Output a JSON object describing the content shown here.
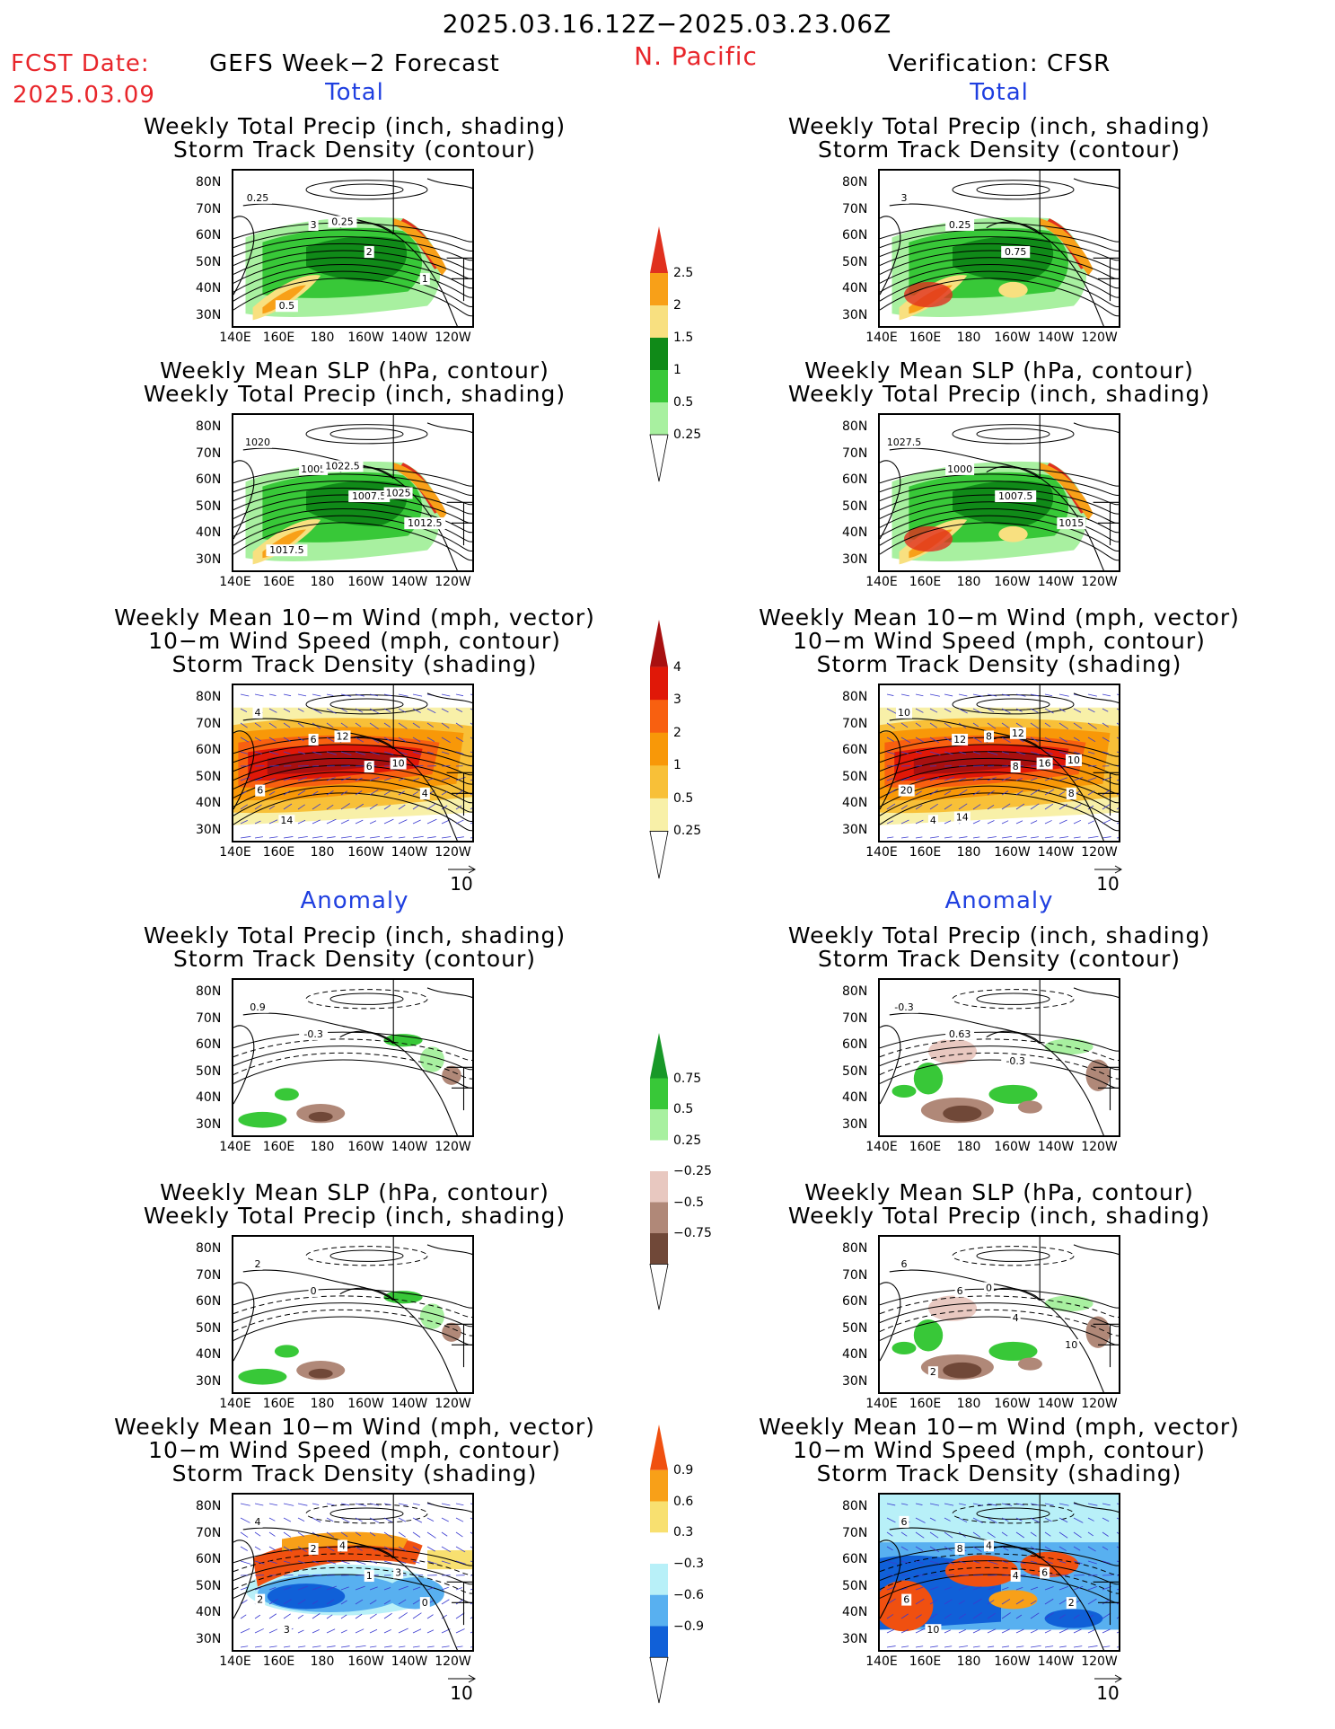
{
  "header": {
    "date_range": "2025.03.16.12Z−2025.03.23.06Z",
    "region": "N. Pacific",
    "fcst_label": "FCST Date:",
    "fcst_date": "2025.03.09",
    "left_title": "GEFS Week−2 Forecast",
    "right_title": "Verification: CFSR"
  },
  "sections": {
    "total": "Total",
    "anomaly": "Anomaly"
  },
  "panel_titles": {
    "precip_storm": [
      "Weekly Total Precip (inch, shading)",
      "Storm Track Density (contour)"
    ],
    "slp_precip": [
      "Weekly Mean SLP (hPa, contour)",
      "Weekly Total Precip (inch, shading)"
    ],
    "wind": [
      "Weekly Mean 10−m Wind (mph, vector)",
      "10−m Wind Speed (mph, contour)",
      "Storm Track Density (shading)"
    ]
  },
  "axes": {
    "lon_ticks": [
      "140E",
      "160E",
      "180",
      "160W",
      "140W",
      "120W"
    ],
    "lat_ticks": [
      "80N",
      "70N",
      "60N",
      "50N",
      "40N",
      "30N"
    ]
  },
  "vector_ref": "10",
  "colorbars": {
    "precip_total": {
      "labels": [
        "2.5",
        "2",
        "1.5",
        "1",
        "0.5",
        "0.25"
      ],
      "colors": [
        "#e0301e",
        "#f8a018",
        "#f8e080",
        "#108a18",
        "#38c838",
        "#a8f0a0"
      ]
    },
    "storm_total": {
      "labels": [
        "4",
        "3",
        "2",
        "1",
        "0.5",
        "0.25"
      ],
      "colors": [
        "#a81010",
        "#e01808",
        "#f86010",
        "#f89808",
        "#f8c038",
        "#f8f0a8"
      ]
    },
    "precip_anom": {
      "labels": [
        "0.75",
        "0.5",
        "0.25",
        "−0.25",
        "−0.5",
        "−0.75"
      ],
      "colors": [
        "#189828",
        "#38c838",
        "#a8f0a0",
        "#ffffff",
        "#e8c8c0",
        "#b08878",
        "#704838"
      ]
    },
    "storm_anom": {
      "labels": [
        "0.9",
        "0.6",
        "0.3",
        "−0.3",
        "−0.6",
        "−0.9"
      ],
      "colors": [
        "#f05010",
        "#f8a018",
        "#f8e070",
        "#ffffff",
        "#b8f0f8",
        "#58b0f0",
        "#1060d8"
      ]
    }
  },
  "panels": [
    {
      "id": "fc-total-precip",
      "col": "left",
      "row": 0,
      "kind": "precip",
      "labels": [
        "0.25",
        "3",
        "2",
        "1",
        "0.5",
        "0.25"
      ]
    },
    {
      "id": "fc-total-slp",
      "col": "left",
      "row": 1,
      "kind": "precip",
      "labels": [
        "1020",
        "1005",
        "1007.5",
        "1012.5",
        "1017.5",
        "1022.5",
        "1025"
      ]
    },
    {
      "id": "fc-total-wind",
      "col": "left",
      "row": 2,
      "kind": "storm",
      "labels": [
        "4",
        "6",
        "6",
        "4",
        "14",
        "12",
        "10",
        "6"
      ]
    },
    {
      "id": "fc-anom-precip",
      "col": "left",
      "row": 3,
      "kind": "anomprecip",
      "labels": [
        "0.9",
        "-0.3"
      ]
    },
    {
      "id": "fc-anom-slp",
      "col": "left",
      "row": 4,
      "kind": "anomprecip",
      "labels": [
        "2",
        "0"
      ]
    },
    {
      "id": "fc-anom-wind",
      "col": "left",
      "row": 5,
      "kind": "anomstorm",
      "labels": [
        "4",
        "2",
        "1",
        "0",
        "3",
        "4",
        "3",
        "2"
      ]
    },
    {
      "id": "vf-total-precip",
      "col": "right",
      "row": 0,
      "kind": "precip",
      "labels": [
        "3",
        "0.25",
        "0.75"
      ]
    },
    {
      "id": "vf-total-slp",
      "col": "right",
      "row": 1,
      "kind": "precip",
      "labels": [
        "1027.5",
        "1000",
        "1007.5",
        "1015"
      ]
    },
    {
      "id": "vf-total-wind",
      "col": "right",
      "row": 2,
      "kind": "storm",
      "labels": [
        "10",
        "12",
        "8",
        "8",
        "4",
        "8",
        "16",
        "20",
        "14",
        "12",
        "10"
      ]
    },
    {
      "id": "vf-anom-precip",
      "col": "right",
      "row": 3,
      "kind": "anomprecip",
      "labels": [
        "-0.3",
        "0.63",
        "-0.3"
      ]
    },
    {
      "id": "vf-anom-slp",
      "col": "right",
      "row": 4,
      "kind": "anomprecip",
      "labels": [
        "6",
        "6",
        "4",
        "10",
        "2",
        "0"
      ]
    },
    {
      "id": "vf-anom-wind",
      "col": "right",
      "row": 5,
      "kind": "anomstorm",
      "labels": [
        "6",
        "8",
        "4",
        "2",
        "10",
        "4",
        "6",
        "6"
      ]
    }
  ]
}
